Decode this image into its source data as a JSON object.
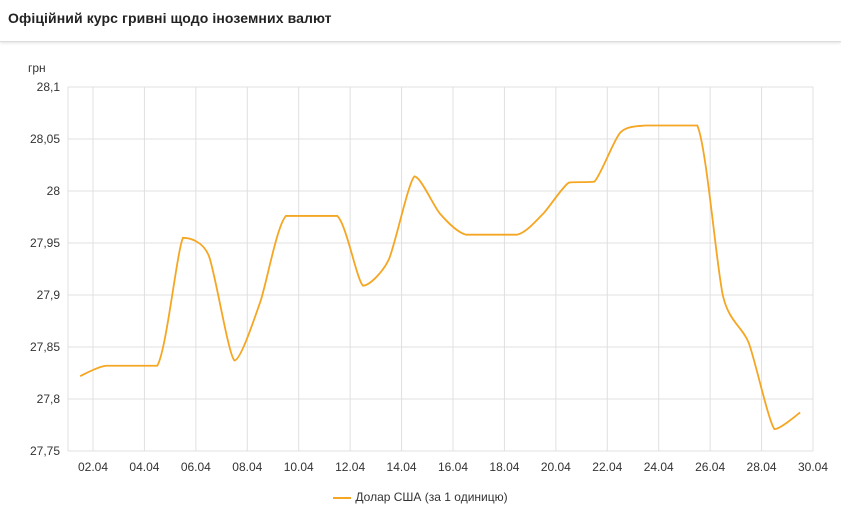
{
  "header": {
    "title": "Офіційний курс гривні щодо іноземних валют"
  },
  "chart_data": {
    "type": "line",
    "ylabel": "грн",
    "ylim": [
      27.75,
      28.1
    ],
    "yticks": [
      "28,1",
      "28,05",
      "28",
      "27,95",
      "27,9",
      "27,85",
      "27,8",
      "27,75"
    ],
    "yticks_values": [
      28.1,
      28.05,
      28.0,
      27.95,
      27.9,
      27.85,
      27.8,
      27.75
    ],
    "xlim": [
      "01.04",
      "30.04"
    ],
    "xticks": [
      "02.04",
      "04.04",
      "06.04",
      "08.04",
      "10.04",
      "12.04",
      "14.04",
      "16.04",
      "18.04",
      "20.04",
      "22.04",
      "24.04",
      "26.04",
      "28.04",
      "30.04"
    ],
    "grid": true,
    "legend_position": "bottom",
    "series": [
      {
        "name": "Долар США (за 1 одиницю)",
        "color": "#f5a623",
        "x": [
          "01.04",
          "02.04",
          "04.04",
          "05.04",
          "06.04",
          "07.04",
          "08.04",
          "09.04",
          "11.04",
          "12.04",
          "13.04",
          "14.04",
          "15.04",
          "16.04",
          "18.04",
          "19.04",
          "20.04",
          "21.04",
          "22.04",
          "23.04",
          "25.04",
          "26.04",
          "27.04",
          "28.04",
          "29.04"
        ],
        "values": [
          27.822,
          27.832,
          27.832,
          27.955,
          27.938,
          27.837,
          27.893,
          27.976,
          27.976,
          27.909,
          27.934,
          28.014,
          27.978,
          27.958,
          27.958,
          27.978,
          28.008,
          28.009,
          28.056,
          28.063,
          28.063,
          27.899,
          27.854,
          27.771,
          27.787
        ]
      }
    ]
  }
}
